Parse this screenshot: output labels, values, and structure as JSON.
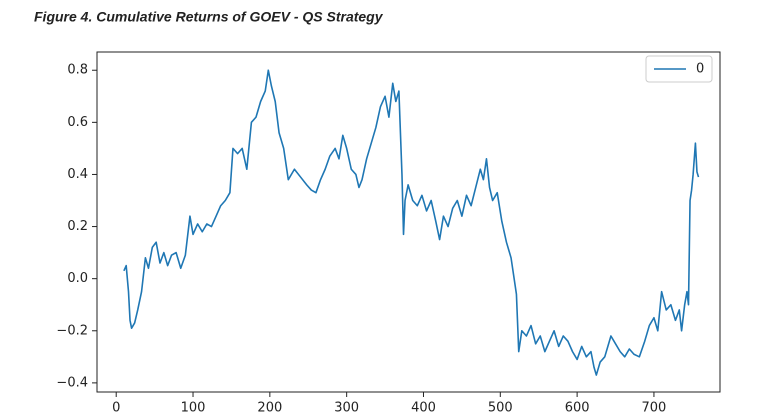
{
  "chart_data": {
    "type": "line",
    "title": "Figure 4. Cumulative Returns of GOEV - QS Strategy",
    "x": [
      10,
      13,
      16,
      18,
      20,
      24,
      28,
      33,
      38,
      42,
      47,
      52,
      57,
      62,
      67,
      72,
      78,
      84,
      90,
      96,
      100,
      106,
      112,
      118,
      124,
      130,
      136,
      142,
      148,
      152,
      158,
      164,
      170,
      176,
      182,
      188,
      194,
      198,
      202,
      207,
      212,
      218,
      224,
      232,
      240,
      248,
      254,
      260,
      266,
      272,
      278,
      285,
      290,
      295,
      300,
      306,
      312,
      316,
      320,
      326,
      332,
      338,
      344,
      350,
      355,
      360,
      364,
      368,
      372,
      374,
      376,
      380,
      386,
      392,
      398,
      404,
      410,
      416,
      421,
      426,
      432,
      438,
      444,
      450,
      456,
      462,
      468,
      474,
      478,
      482,
      486,
      490,
      496,
      502,
      508,
      514,
      518,
      521,
      524,
      528,
      534,
      540,
      546,
      552,
      558,
      564,
      570,
      576,
      582,
      588,
      594,
      600,
      606,
      612,
      618,
      622,
      625,
      630,
      636,
      644,
      650,
      656,
      662,
      668,
      674,
      681,
      688,
      694,
      700,
      705,
      710,
      716,
      722,
      728,
      733,
      736,
      740,
      743,
      745,
      747,
      749,
      751,
      754,
      756,
      758
    ],
    "series": [
      {
        "name": "0",
        "color": "#1f77b4",
        "values": [
          0.03,
          0.05,
          -0.05,
          -0.16,
          -0.19,
          -0.17,
          -0.12,
          -0.05,
          0.08,
          0.04,
          0.12,
          0.14,
          0.06,
          0.1,
          0.05,
          0.09,
          0.1,
          0.04,
          0.09,
          0.24,
          0.17,
          0.21,
          0.18,
          0.21,
          0.2,
          0.24,
          0.28,
          0.3,
          0.33,
          0.5,
          0.48,
          0.5,
          0.42,
          0.6,
          0.62,
          0.68,
          0.72,
          0.8,
          0.74,
          0.68,
          0.56,
          0.5,
          0.38,
          0.42,
          0.39,
          0.36,
          0.34,
          0.33,
          0.38,
          0.42,
          0.47,
          0.5,
          0.46,
          0.55,
          0.5,
          0.42,
          0.4,
          0.35,
          0.38,
          0.46,
          0.52,
          0.58,
          0.66,
          0.7,
          0.62,
          0.75,
          0.68,
          0.72,
          0.4,
          0.17,
          0.3,
          0.36,
          0.3,
          0.28,
          0.32,
          0.26,
          0.3,
          0.22,
          0.15,
          0.24,
          0.2,
          0.27,
          0.3,
          0.24,
          0.32,
          0.28,
          0.35,
          0.42,
          0.38,
          0.46,
          0.35,
          0.3,
          0.33,
          0.22,
          0.14,
          0.08,
          0.0,
          -0.06,
          -0.28,
          -0.2,
          -0.22,
          -0.18,
          -0.25,
          -0.22,
          -0.28,
          -0.24,
          -0.2,
          -0.26,
          -0.22,
          -0.24,
          -0.28,
          -0.31,
          -0.26,
          -0.3,
          -0.28,
          -0.34,
          -0.37,
          -0.32,
          -0.3,
          -0.22,
          -0.25,
          -0.28,
          -0.3,
          -0.27,
          -0.29,
          -0.3,
          -0.24,
          -0.18,
          -0.15,
          -0.2,
          -0.05,
          -0.12,
          -0.1,
          -0.16,
          -0.12,
          -0.2,
          -0.1,
          -0.05,
          -0.1,
          0.3,
          0.34,
          0.4,
          0.52,
          0.41,
          0.39
        ]
      }
    ],
    "xlim": [
      -25,
      786
    ],
    "ylim": [
      -0.435,
      0.87
    ],
    "xticks": [
      0,
      100,
      200,
      300,
      400,
      500,
      600,
      700
    ],
    "yticks": [
      {
        "value": -0.4,
        "label": "−0.4"
      },
      {
        "value": -0.2,
        "label": "−0.2"
      },
      {
        "value": 0,
        "label": "0.0"
      },
      0.2,
      0.4,
      0.6,
      0.8
    ],
    "legend": "upper right",
    "grid": false
  }
}
